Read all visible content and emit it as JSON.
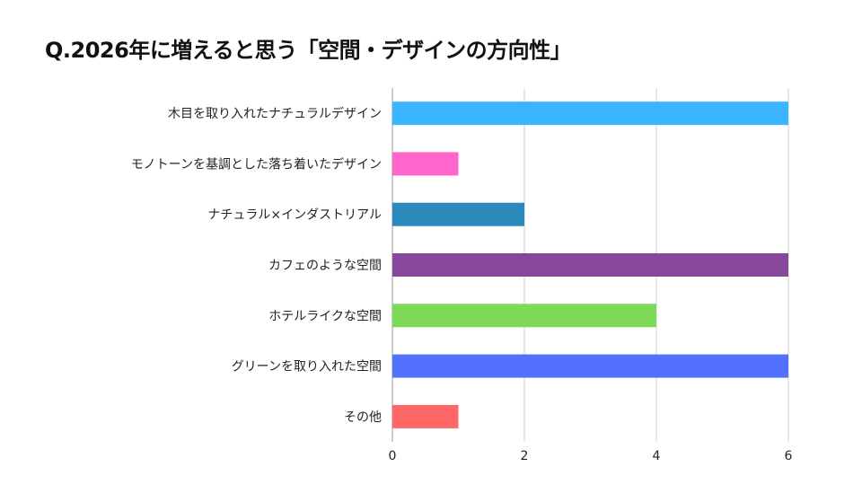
{
  "chart_data": {
    "type": "bar",
    "orientation": "horizontal",
    "title": "Q.2026年に増えると思う「空間・デザインの方向性」",
    "categories": [
      "木目を取り入れたナチュラルデザイン",
      "モノトーンを基調とした落ち着いたデザイン",
      "ナチュラル×インダストリアル",
      "カフェのような空間",
      "ホテルライクな空間",
      "グリーンを取り入れた空間",
      "その他"
    ],
    "values": [
      6,
      1,
      2,
      6,
      4,
      6,
      1
    ],
    "colors": [
      "#3bb5ff",
      "#ff66cc",
      "#2b8abb",
      "#87479a",
      "#7dd957",
      "#5271ff",
      "#ff6666"
    ],
    "xlim": [
      0,
      6
    ],
    "xticks": [
      0,
      2,
      4,
      6
    ],
    "grid": true,
    "legend": "none",
    "xlabel": "",
    "ylabel": ""
  }
}
